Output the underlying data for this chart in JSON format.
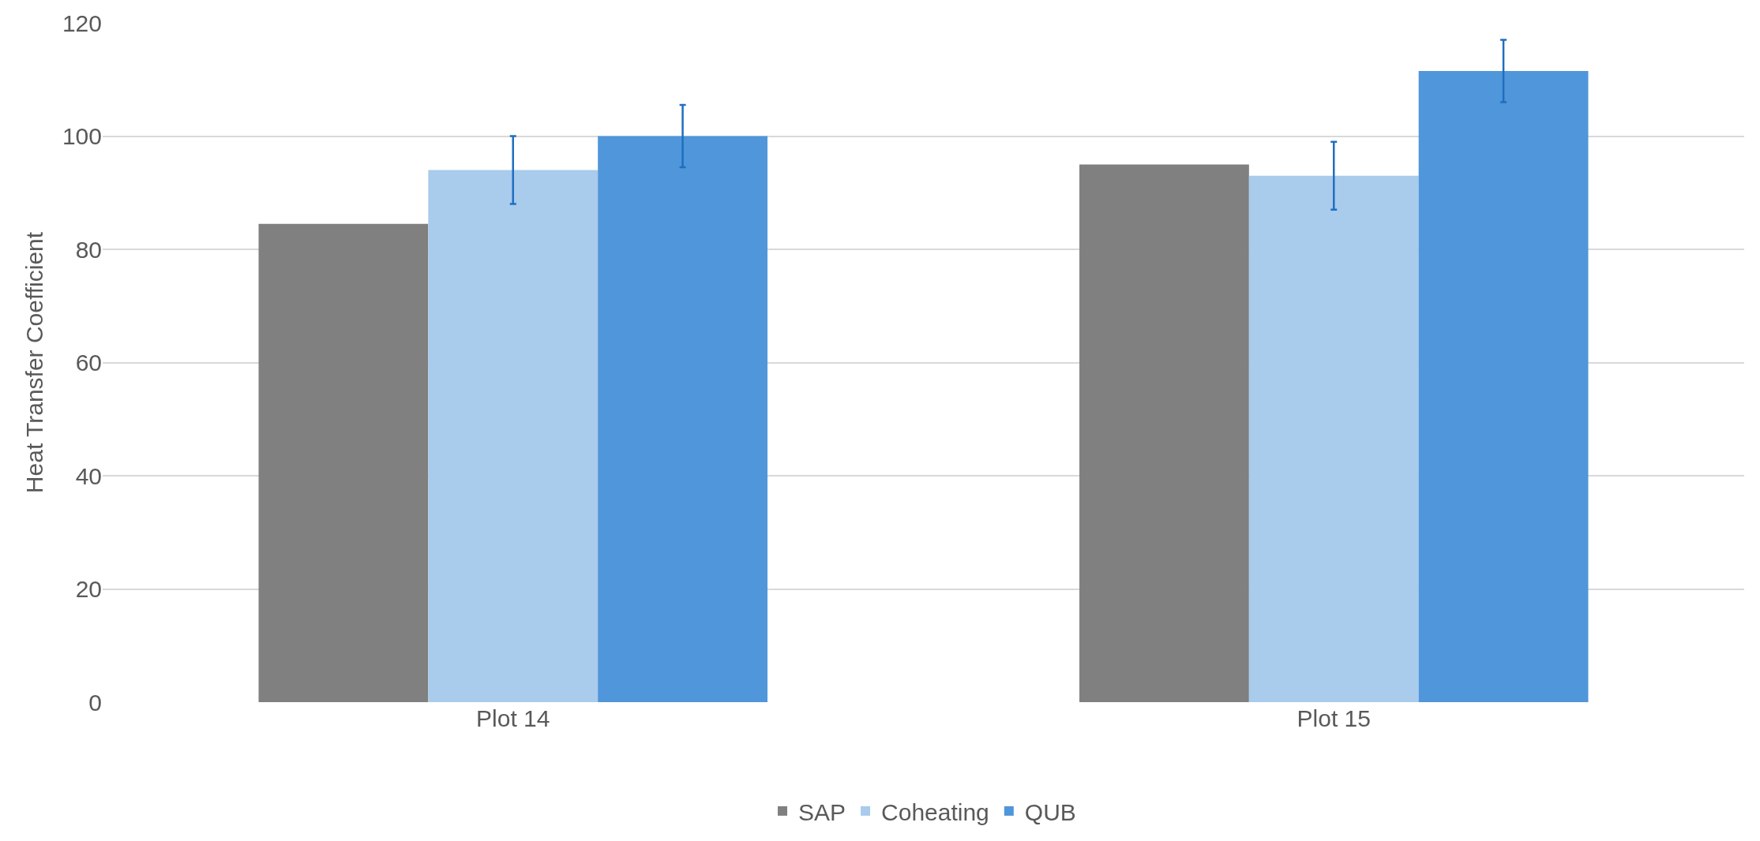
{
  "chart_data": {
    "type": "bar",
    "ylabel": "Heat Transfer Coefficient",
    "categories": [
      "Plot 14",
      "Plot 15"
    ],
    "series": [
      {
        "name": "SAP",
        "color": "#808080",
        "values": [
          84.5,
          95
        ]
      },
      {
        "name": "Coheating",
        "color": "#a9cbec",
        "values": [
          94,
          93
        ],
        "errors": [
          6,
          6
        ]
      },
      {
        "name": "QUB",
        "color": "#5096da",
        "values": [
          100,
          111.5
        ],
        "errors": [
          5.5,
          5.5
        ]
      }
    ],
    "ylim": [
      0,
      120
    ],
    "yticks": [
      0,
      20,
      40,
      60,
      80,
      100,
      120
    ],
    "grid": "y",
    "legend": "bottom"
  }
}
